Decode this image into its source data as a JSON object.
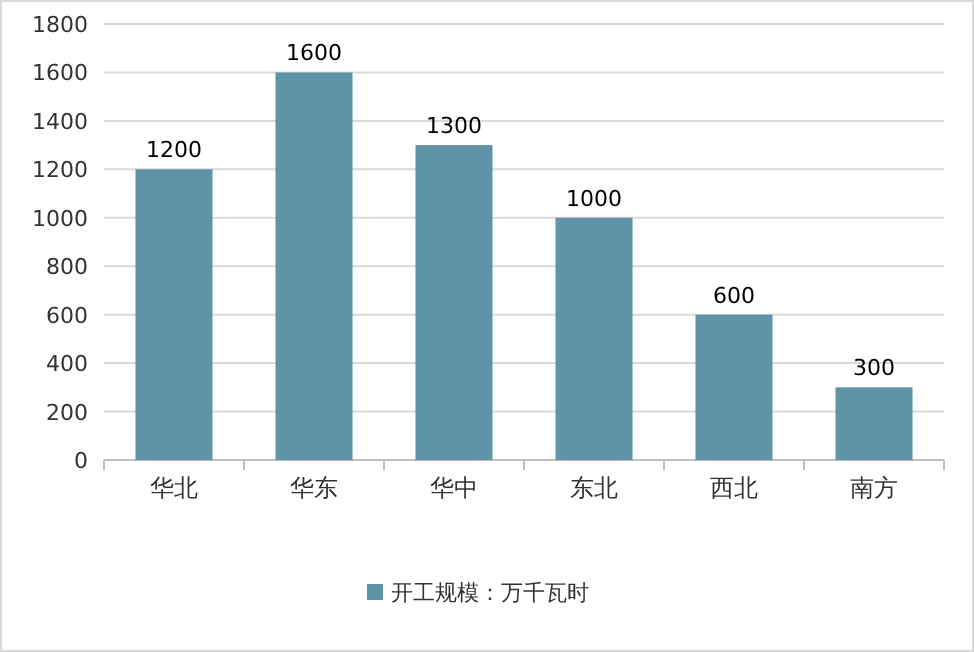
{
  "chart_data": {
    "type": "bar",
    "categories": [
      "华北",
      "华东",
      "华中",
      "东北",
      "西北",
      "南方"
    ],
    "series": [
      {
        "name": "开工规模：万千瓦时",
        "color": "#5f93a8",
        "values": [
          1200,
          1600,
          1300,
          1000,
          600,
          300
        ]
      }
    ],
    "ylim": [
      0,
      1800
    ],
    "yticks": [
      0,
      200,
      400,
      600,
      800,
      1000,
      1200,
      1400,
      1600,
      1800
    ],
    "grid": "y",
    "legend": "bottom",
    "data_labels": true
  }
}
